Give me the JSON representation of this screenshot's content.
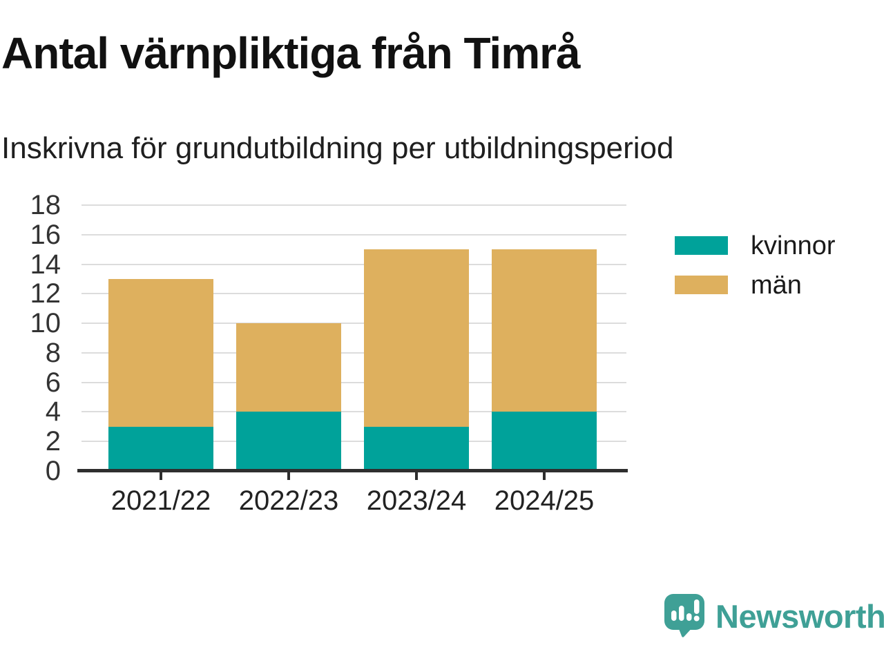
{
  "header": {
    "title": "Antal värnpliktiga från Timrå",
    "subtitle": "Inskrivna för grundutbildning per utbildningsperiod"
  },
  "chart_data": {
    "type": "bar",
    "stacked": true,
    "title": "Antal värnpliktiga från Timrå",
    "subtitle": "Inskrivna för grundutbildning per utbildningsperiod",
    "categories": [
      "2021/22",
      "2022/23",
      "2023/24",
      "2024/25"
    ],
    "series": [
      {
        "name": "kvinnor",
        "color": "#00a29a",
        "values": [
          3,
          4,
          3,
          4
        ]
      },
      {
        "name": "män",
        "color": "#deb05e",
        "values": [
          10,
          6,
          12,
          11
        ]
      }
    ],
    "stack_totals": [
      13,
      10,
      15,
      15
    ],
    "ylim": [
      0,
      18
    ],
    "ytick_step": 2,
    "ytick_labels": [
      "0",
      "2",
      "4",
      "6",
      "8",
      "10",
      "12",
      "14",
      "16",
      "18"
    ],
    "grid": true,
    "legend_position": "right"
  },
  "colors": {
    "grid": "#dcdcdc",
    "axis": "#2e2e2e",
    "ylabel": "#333333",
    "xlabel": "#222222",
    "logo": "#3fa096"
  },
  "footer": {
    "brand": "Newsworthy"
  }
}
